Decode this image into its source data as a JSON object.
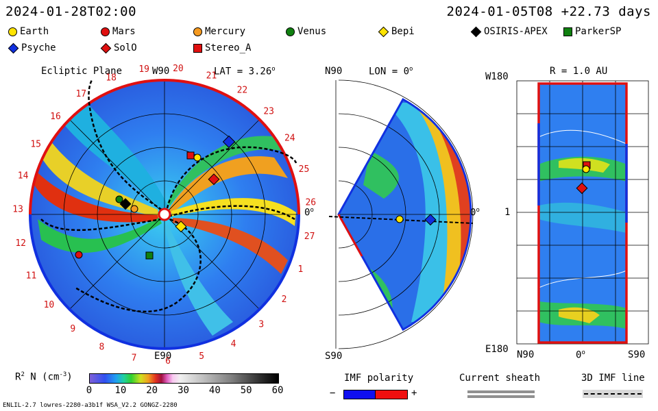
{
  "header": {
    "sim_time": "2024-01-28T02:00",
    "run_time": "2024-01-05T08  +22.73 days"
  },
  "legend": [
    {
      "label": "Earth",
      "shape": "circle",
      "color": "#ffe400"
    },
    {
      "label": "Mars",
      "shape": "circle",
      "color": "#e01010"
    },
    {
      "label": "Mercury",
      "shape": "circle",
      "color": "#f59a20"
    },
    {
      "label": "Venus",
      "shape": "circle",
      "color": "#108010"
    },
    {
      "label": "Bepi",
      "shape": "diamond",
      "color": "#ffe400"
    },
    {
      "label": "OSIRIS-APEX",
      "shape": "diamond",
      "color": "#000000"
    },
    {
      "label": "ParkerSP",
      "shape": "square",
      "color": "#108010"
    },
    {
      "label": "Psyche",
      "shape": "diamond",
      "color": "#1030e0"
    },
    {
      "label": "SolO",
      "shape": "diamond",
      "color": "#e01010"
    },
    {
      "label": "Stereo_A",
      "shape": "square",
      "color": "#e01010"
    }
  ],
  "panels": {
    "ecliptic": {
      "title": "Ecliptic Plane",
      "top_label": "W90",
      "bottom_label": "E90",
      "right_label": "0",
      "lat_label": "LAT = 3.26",
      "deg": "o",
      "rotations": [
        "19",
        "20",
        "21",
        "22",
        "23",
        "24",
        "25",
        "26",
        "27",
        "1",
        "2",
        "3",
        "4",
        "5",
        "6",
        "7",
        "8",
        "9",
        "10",
        "11",
        "12",
        "13",
        "14",
        "15",
        "16",
        "17",
        "18"
      ]
    },
    "meridional": {
      "top_label": "N90",
      "lon_label": "LON = 0",
      "deg": "o",
      "bottom_label": "S90",
      "right_label": "0"
    },
    "radial": {
      "title": "R = 1.0 AU",
      "top_left": "W180",
      "mid_left": "1",
      "bottom_left": "E180",
      "x_ticks": [
        "N90",
        "0",
        "S90"
      ],
      "deg": "o"
    }
  },
  "colorbar": {
    "label": "R",
    "label_sup": "2",
    "label_rest": " N (cm",
    "label_unit_sup": "-3",
    "label_close": ")",
    "ticks": [
      "0",
      "10",
      "20",
      "30",
      "40",
      "50",
      "60"
    ]
  },
  "imf_polarity": {
    "title": "IMF polarity",
    "minus": "−",
    "plus": "+"
  },
  "current_sheath": {
    "title": "Current sheath"
  },
  "imf_line": {
    "title": "3D IMF line"
  },
  "footer": {
    "model_info": "ENLIL-2.7 lowres-2280-a3b1f WSA_V2.2 GONGZ-2280"
  }
}
